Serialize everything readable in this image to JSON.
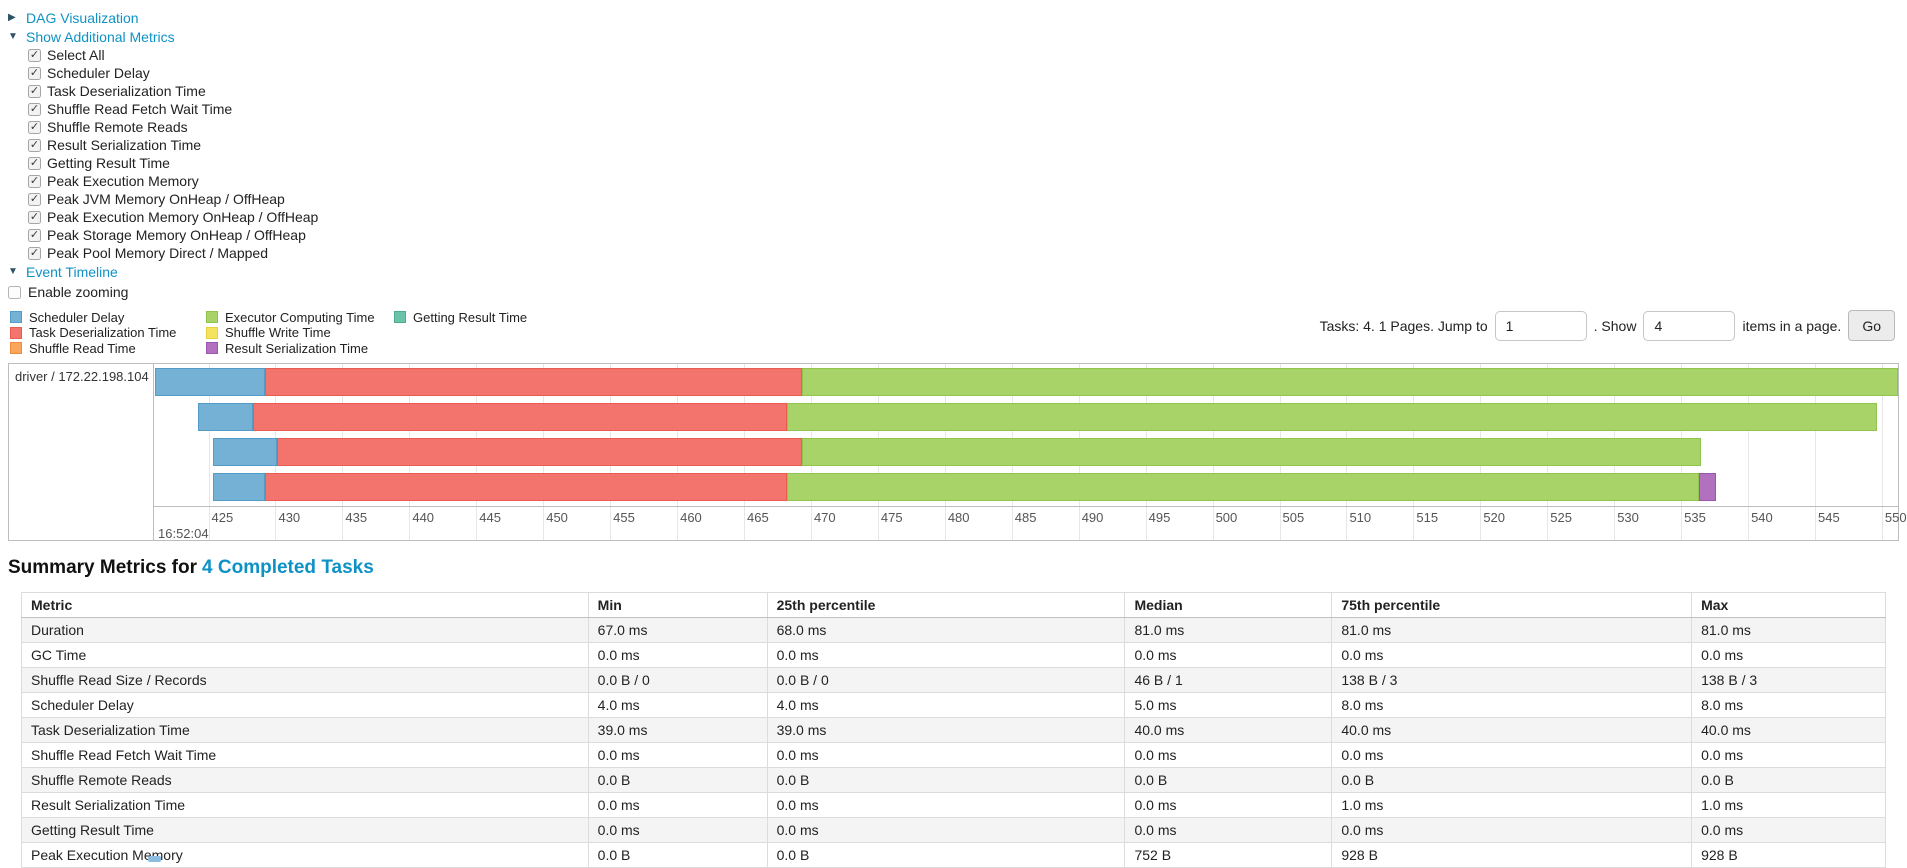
{
  "controls": {
    "dag_visualization": {
      "label": "DAG Visualization",
      "arrow": "▶"
    },
    "show_additional_metrics": {
      "label": "Show Additional Metrics",
      "arrow": "▼"
    },
    "metrics_checkboxes": [
      {
        "label": "Select All",
        "checked": true
      },
      {
        "label": "Scheduler Delay",
        "checked": true
      },
      {
        "label": "Task Deserialization Time",
        "checked": true
      },
      {
        "label": "Shuffle Read Fetch Wait Time",
        "checked": true
      },
      {
        "label": "Shuffle Remote Reads",
        "checked": true
      },
      {
        "label": "Result Serialization Time",
        "checked": true
      },
      {
        "label": "Getting Result Time",
        "checked": true
      },
      {
        "label": "Peak Execution Memory",
        "checked": true
      },
      {
        "label": "Peak JVM Memory OnHeap / OffHeap",
        "checked": true
      },
      {
        "label": "Peak Execution Memory OnHeap / OffHeap",
        "checked": true
      },
      {
        "label": "Peak Storage Memory OnHeap / OffHeap",
        "checked": true
      },
      {
        "label": "Peak Pool Memory Direct / Mapped",
        "checked": true
      }
    ],
    "event_timeline": {
      "label": "Event Timeline",
      "arrow": "▼"
    },
    "enable_zooming": {
      "label": "Enable zooming",
      "checked": false
    }
  },
  "pagination": {
    "tasks_text": "Tasks: 4. 1 Pages. Jump to",
    "jump_value": "1",
    "mid_text": ". Show",
    "show_value": "4",
    "suffix_text": "items in a page.",
    "go_label": "Go"
  },
  "timeline": {
    "group_label": "driver / 172.22.198.104",
    "major_label": "16:52:04",
    "axis": {
      "min": 421.0,
      "max": 551.2,
      "tick_start": 425,
      "tick_end": 550,
      "tick_step": 5
    },
    "colors": {
      "scheduler-delay": {
        "bg": "#74B1D4",
        "border": "#549CC8"
      },
      "task-deserialization": {
        "bg": "#F3746C",
        "border": "#EA5B52"
      },
      "shuffle-read": {
        "bg": "#F9A65C",
        "border": "#F28C3C"
      },
      "executor-computing": {
        "bg": "#A7D368",
        "border": "#90C44C"
      },
      "shuffle-write": {
        "bg": "#F3E35F",
        "border": "#E6D13F"
      },
      "result-serialization": {
        "bg": "#B271BE",
        "border": "#9C55AC"
      },
      "getting-result": {
        "bg": "#6BC3AB",
        "border": "#4BB091"
      }
    },
    "legend_columns": [
      [
        {
          "type": "scheduler-delay",
          "label": "Scheduler Delay"
        },
        {
          "type": "task-deserialization",
          "label": "Task Deserialization Time"
        },
        {
          "type": "shuffle-read",
          "label": "Shuffle Read Time"
        }
      ],
      [
        {
          "type": "executor-computing",
          "label": "Executor Computing Time"
        },
        {
          "type": "shuffle-write",
          "label": "Shuffle Write Time"
        },
        {
          "type": "result-serialization",
          "label": "Result Serialization Time"
        }
      ],
      [
        {
          "type": "getting-result",
          "label": "Getting Result Time"
        }
      ]
    ],
    "tasks": [
      {
        "segments": [
          {
            "t": "scheduler-delay",
            "s": 421.0,
            "e": 429.2
          },
          {
            "t": "task-deserialization",
            "s": 429.2,
            "e": 469.3
          },
          {
            "t": "executor-computing",
            "s": 469.3,
            "e": 551.2
          }
        ]
      },
      {
        "segments": [
          {
            "t": "scheduler-delay",
            "s": 424.2,
            "e": 428.3
          },
          {
            "t": "task-deserialization",
            "s": 428.3,
            "e": 468.2
          },
          {
            "t": "executor-computing",
            "s": 468.2,
            "e": 549.6
          }
        ]
      },
      {
        "segments": [
          {
            "t": "scheduler-delay",
            "s": 425.3,
            "e": 430.1
          },
          {
            "t": "task-deserialization",
            "s": 430.1,
            "e": 469.3
          },
          {
            "t": "executor-computing",
            "s": 469.3,
            "e": 536.5
          }
        ]
      },
      {
        "segments": [
          {
            "t": "scheduler-delay",
            "s": 425.3,
            "e": 429.2
          },
          {
            "t": "task-deserialization",
            "s": 429.2,
            "e": 468.2
          },
          {
            "t": "executor-computing",
            "s": 468.2,
            "e": 536.3
          },
          {
            "t": "result-serialization",
            "s": 536.3,
            "e": 537.6
          }
        ]
      }
    ]
  },
  "summary": {
    "title_prefix": "Summary Metrics for",
    "title_link": "4 Completed Tasks",
    "table": {
      "headers": [
        "Metric",
        "Min",
        "25th percentile",
        "Median",
        "75th percentile",
        "Max"
      ],
      "col_widths": [
        "30.4%",
        "9.6%",
        "19.2%",
        "11.1%",
        "19.3%",
        "10.4%"
      ],
      "rows": [
        [
          "Duration",
          "67.0 ms",
          "68.0 ms",
          "81.0 ms",
          "81.0 ms",
          "81.0 ms"
        ],
        [
          "GC Time",
          "0.0 ms",
          "0.0 ms",
          "0.0 ms",
          "0.0 ms",
          "0.0 ms"
        ],
        [
          "Shuffle Read Size / Records",
          "0.0 B / 0",
          "0.0 B / 0",
          "46 B / 1",
          "138 B / 3",
          "138 B / 3"
        ],
        [
          "Scheduler Delay",
          "4.0 ms",
          "4.0 ms",
          "5.0 ms",
          "8.0 ms",
          "8.0 ms"
        ],
        [
          "Task Deserialization Time",
          "39.0 ms",
          "39.0 ms",
          "40.0 ms",
          "40.0 ms",
          "40.0 ms"
        ],
        [
          "Shuffle Read Fetch Wait Time",
          "0.0 ms",
          "0.0 ms",
          "0.0 ms",
          "0.0 ms",
          "0.0 ms"
        ],
        [
          "Shuffle Remote Reads",
          "0.0 B",
          "0.0 B",
          "0.0 B",
          "0.0 B",
          "0.0 B"
        ],
        [
          "Result Serialization Time",
          "0.0 ms",
          "0.0 ms",
          "0.0 ms",
          "1.0 ms",
          "1.0 ms"
        ],
        [
          "Getting Result Time",
          "0.0 ms",
          "0.0 ms",
          "0.0 ms",
          "0.0 ms",
          "0.0 ms"
        ],
        [
          "Peak Execution Memory",
          "0.0 B",
          "0.0 B",
          "752 B",
          "928 B",
          "928 B"
        ]
      ]
    }
  }
}
